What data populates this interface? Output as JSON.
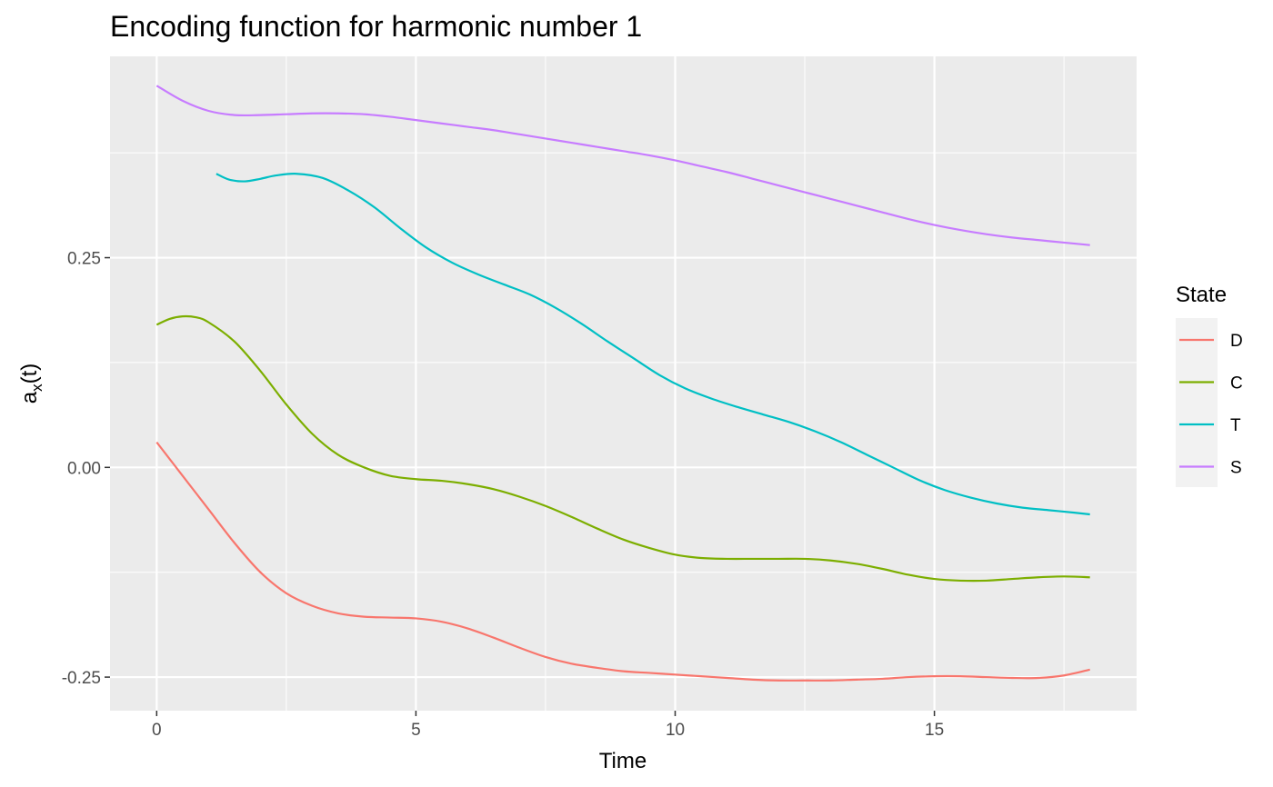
{
  "chart_data": {
    "type": "line",
    "title": "Encoding function for harmonic number 1",
    "xlabel": "Time",
    "ylabel": {
      "main": "a",
      "sub": "x",
      "suffix": "(t)"
    },
    "xlim": [
      -0.9,
      18.9
    ],
    "ylim": [
      -0.29,
      0.49
    ],
    "x_ticks": [
      0,
      5,
      10,
      15
    ],
    "x_tick_labels": [
      "0",
      "5",
      "10",
      "15"
    ],
    "y_ticks": [
      -0.25,
      0.0,
      0.25
    ],
    "y_tick_labels": [
      "-0.25",
      "0.00",
      "0.25"
    ],
    "grid": true,
    "legend": {
      "title": "State",
      "position": "right"
    },
    "series": [
      {
        "name": "D",
        "color": "#F8766D",
        "x": [
          0,
          0.5,
          1,
          1.5,
          2,
          2.5,
          3,
          3.5,
          4,
          4.5,
          5,
          5.5,
          6,
          6.5,
          7,
          7.5,
          8,
          8.5,
          9,
          9.5,
          10,
          10.5,
          11,
          11.5,
          12,
          12.5,
          13,
          13.5,
          14,
          14.5,
          15,
          15.5,
          16,
          16.5,
          17,
          17.5,
          18
        ],
        "y": [
          0.03,
          -0.01,
          -0.05,
          -0.09,
          -0.125,
          -0.15,
          -0.165,
          -0.174,
          -0.178,
          -0.179,
          -0.18,
          -0.184,
          -0.192,
          -0.203,
          -0.215,
          -0.226,
          -0.234,
          -0.239,
          -0.243,
          -0.245,
          -0.247,
          -0.249,
          -0.251,
          -0.253,
          -0.254,
          -0.254,
          -0.254,
          -0.253,
          -0.252,
          -0.25,
          -0.249,
          -0.249,
          -0.25,
          -0.251,
          -0.251,
          -0.248,
          -0.241
        ]
      },
      {
        "name": "C",
        "color": "#7CAE00",
        "x": [
          0,
          0.25,
          0.5,
          0.75,
          1,
          1.5,
          2,
          2.5,
          3,
          3.5,
          4,
          4.5,
          5,
          5.5,
          6,
          6.5,
          7,
          7.5,
          8,
          8.5,
          9,
          9.5,
          10,
          10.5,
          11,
          11.5,
          12,
          12.5,
          13,
          13.5,
          14,
          14.5,
          15,
          15.5,
          16,
          16.5,
          17,
          17.5,
          18
        ],
        "y": [
          0.17,
          0.177,
          0.18,
          0.179,
          0.173,
          0.15,
          0.115,
          0.075,
          0.04,
          0.015,
          0.0,
          -0.01,
          -0.014,
          -0.016,
          -0.02,
          -0.026,
          -0.035,
          -0.046,
          -0.059,
          -0.073,
          -0.086,
          -0.096,
          -0.104,
          -0.108,
          -0.109,
          -0.109,
          -0.109,
          -0.109,
          -0.111,
          -0.115,
          -0.121,
          -0.128,
          -0.133,
          -0.135,
          -0.135,
          -0.133,
          -0.131,
          -0.13,
          -0.131
        ]
      },
      {
        "name": "T",
        "color": "#00BFC4",
        "x": [
          1.15,
          1.4,
          1.7,
          2,
          2.3,
          2.7,
          3.2,
          3.7,
          4.2,
          4.7,
          5.2,
          5.7,
          6.2,
          6.7,
          7.2,
          7.7,
          8.2,
          8.7,
          9.2,
          9.7,
          10.2,
          10.7,
          11.2,
          11.7,
          12.2,
          12.7,
          13.2,
          13.7,
          14.2,
          14.7,
          15.2,
          15.7,
          16.2,
          16.7,
          17.2,
          17.7,
          18
        ],
        "y": [
          0.35,
          0.343,
          0.341,
          0.344,
          0.348,
          0.35,
          0.345,
          0.33,
          0.31,
          0.285,
          0.262,
          0.244,
          0.23,
          0.218,
          0.206,
          0.19,
          0.171,
          0.15,
          0.13,
          0.11,
          0.094,
          0.082,
          0.072,
          0.063,
          0.054,
          0.043,
          0.03,
          0.015,
          0.0,
          -0.015,
          -0.027,
          -0.036,
          -0.043,
          -0.048,
          -0.051,
          -0.054,
          -0.056
        ]
      },
      {
        "name": "S",
        "color": "#C77CFF",
        "x": [
          0,
          0.5,
          1,
          1.5,
          2,
          2.5,
          3,
          3.5,
          4,
          4.5,
          5,
          5.5,
          6,
          6.5,
          7,
          7.5,
          8,
          8.5,
          9,
          9.5,
          10,
          10.5,
          11,
          11.5,
          12,
          12.5,
          13,
          13.5,
          14,
          14.5,
          15,
          15.5,
          16,
          16.5,
          17,
          17.5,
          18
        ],
        "y": [
          0.455,
          0.437,
          0.425,
          0.42,
          0.42,
          0.421,
          0.422,
          0.422,
          0.421,
          0.418,
          0.414,
          0.41,
          0.406,
          0.402,
          0.397,
          0.392,
          0.387,
          0.382,
          0.377,
          0.372,
          0.366,
          0.359,
          0.352,
          0.344,
          0.336,
          0.328,
          0.32,
          0.312,
          0.304,
          0.296,
          0.289,
          0.283,
          0.278,
          0.274,
          0.271,
          0.268,
          0.265
        ]
      }
    ]
  }
}
